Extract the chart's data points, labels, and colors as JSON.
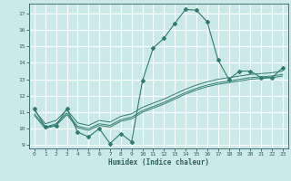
{
  "xlabel": "Humidex (Indice chaleur)",
  "ylabel": "",
  "bg_color": "#cce9e9",
  "grid_color": "#ffffff",
  "line_color": "#2e7d6e",
  "x_values": [
    0,
    1,
    2,
    3,
    4,
    5,
    6,
    7,
    8,
    9,
    10,
    11,
    12,
    13,
    14,
    15,
    16,
    17,
    18,
    19,
    20,
    21,
    22,
    23
  ],
  "main_y": [
    11.2,
    10.1,
    10.2,
    11.2,
    9.8,
    9.5,
    10.0,
    9.1,
    9.7,
    9.2,
    12.9,
    14.9,
    15.5,
    16.4,
    17.25,
    17.2,
    16.5,
    14.2,
    13.0,
    13.5,
    13.5,
    13.1,
    13.1,
    13.7
  ],
  "line2_y": [
    11.1,
    10.3,
    10.5,
    11.15,
    10.35,
    10.2,
    10.5,
    10.4,
    10.75,
    10.9,
    11.3,
    11.55,
    11.8,
    12.1,
    12.4,
    12.65,
    12.85,
    13.0,
    13.1,
    13.2,
    13.3,
    13.35,
    13.4,
    13.5
  ],
  "line3_y": [
    10.9,
    10.1,
    10.3,
    10.95,
    10.15,
    10.0,
    10.3,
    10.2,
    10.55,
    10.7,
    11.1,
    11.35,
    11.6,
    11.9,
    12.2,
    12.45,
    12.65,
    12.8,
    12.9,
    13.0,
    13.1,
    13.15,
    13.2,
    13.3
  ],
  "line4_y": [
    10.8,
    10.0,
    10.2,
    10.85,
    10.05,
    9.9,
    10.2,
    10.1,
    10.45,
    10.6,
    11.0,
    11.25,
    11.5,
    11.8,
    12.1,
    12.35,
    12.55,
    12.7,
    12.8,
    12.9,
    13.0,
    13.05,
    13.1,
    13.2
  ],
  "ylim": [
    8.8,
    17.6
  ],
  "yticks": [
    9,
    10,
    11,
    12,
    13,
    14,
    15,
    16,
    17
  ],
  "xlim": [
    -0.5,
    23.5
  ],
  "xticks": [
    0,
    1,
    2,
    3,
    4,
    5,
    6,
    7,
    8,
    9,
    10,
    11,
    12,
    13,
    14,
    15,
    16,
    17,
    18,
    19,
    20,
    21,
    22,
    23
  ]
}
